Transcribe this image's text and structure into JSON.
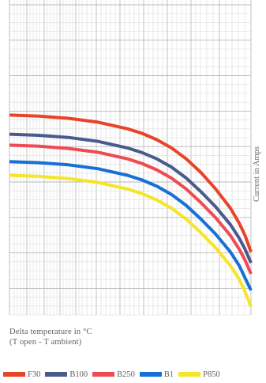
{
  "chart_data": {
    "type": "line",
    "xlabel_line1": "Delta temperature in °C",
    "xlabel_line2": "(T open - T ambient)",
    "ylabel": "Current in Amps",
    "grid": true,
    "legend_position": "bottom",
    "x": [
      0,
      10,
      20,
      30,
      40,
      45,
      50,
      55,
      60,
      65,
      70,
      75,
      78,
      80,
      82
    ],
    "series": [
      {
        "name": "F30",
        "color": "#e8442a",
        "values": [
          58,
          57.6,
          56.8,
          55.4,
          53,
          51.3,
          49,
          46,
          42,
          37,
          31,
          24,
          18.5,
          14,
          8
        ]
      },
      {
        "name": "B100",
        "color": "#4a5a8c",
        "values": [
          51,
          50.6,
          49.8,
          48.4,
          46,
          44.3,
          42,
          39,
          35,
          30,
          24.5,
          18,
          13,
          9,
          4
        ]
      },
      {
        "name": "B250",
        "color": "#ee4b52",
        "values": [
          47,
          46.6,
          45.8,
          44.4,
          42,
          40.3,
          38,
          35,
          31,
          26,
          20.5,
          14,
          9,
          5,
          0
        ]
      },
      {
        "name": "B1",
        "color": "#1670d6",
        "values": [
          41,
          40.6,
          39.8,
          38.4,
          36,
          34.3,
          32,
          29,
          25,
          20,
          14.5,
          8,
          3,
          -1.5,
          -6
        ]
      },
      {
        "name": "P850",
        "color": "#f5e52a",
        "values": [
          36,
          35.6,
          34.8,
          33.4,
          31,
          29.3,
          27,
          24,
          20,
          15,
          9.5,
          3,
          -2,
          -6.5,
          -12
        ]
      }
    ],
    "xlim": [
      0,
      82
    ],
    "ylim": [
      -15,
      100
    ]
  }
}
